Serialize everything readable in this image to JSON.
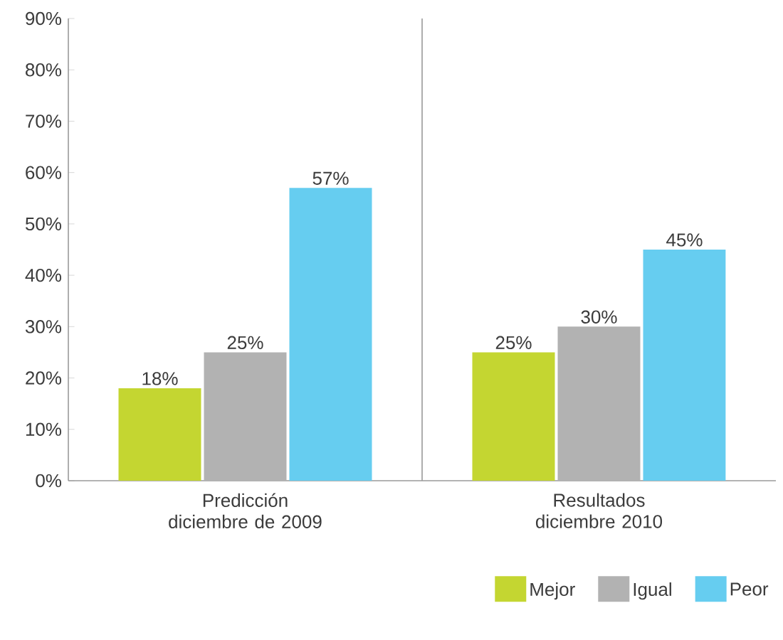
{
  "chart_data": {
    "type": "bar",
    "categories": [
      "Predicción diciembre de 2009",
      "Resultados diciembre 2010"
    ],
    "series": [
      {
        "name": "Mejor",
        "color": "#c4d631",
        "values": [
          18,
          25
        ],
        "value_labels": [
          "18%",
          "25%"
        ]
      },
      {
        "name": "Igual",
        "color": "#b2b2b2",
        "values": [
          25,
          30
        ],
        "value_labels": [
          "25%",
          "30%"
        ]
      },
      {
        "name": "Peor",
        "color": "#66cdf0",
        "values": [
          57,
          45
        ],
        "value_labels": [
          "57%",
          "45%"
        ]
      }
    ],
    "ylim": [
      0,
      90
    ],
    "yticks": [
      {
        "value": 0,
        "label": "0%"
      },
      {
        "value": 10,
        "label": "10%"
      },
      {
        "value": 20,
        "label": "20%"
      },
      {
        "value": 30,
        "label": "30%"
      },
      {
        "value": 40,
        "label": "40%"
      },
      {
        "value": 50,
        "label": "50%"
      },
      {
        "value": 60,
        "label": "60%"
      },
      {
        "value": 70,
        "label": "70%"
      },
      {
        "value": 80,
        "label": "80%"
      },
      {
        "value": 90,
        "label": "90%"
      }
    ],
    "grid": false,
    "legend": "bottom right"
  }
}
